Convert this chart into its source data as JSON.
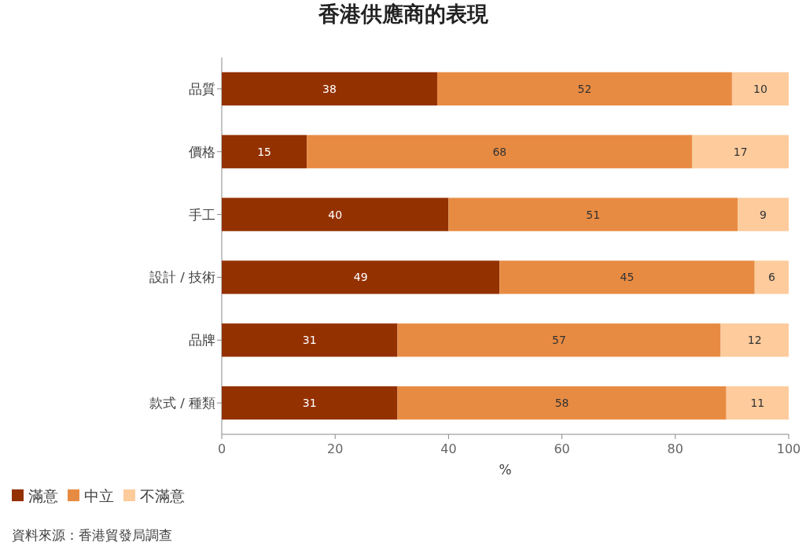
{
  "chart_data": {
    "type": "bar",
    "orientation": "horizontal",
    "stacked": true,
    "title": "香港供應商的表現",
    "categories": [
      "品質",
      "價格",
      "手工",
      "設計 / 技術",
      "品牌",
      "款式 / 種類"
    ],
    "series": [
      {
        "name": "滿意",
        "color": "#943100",
        "values": [
          38,
          15,
          40,
          49,
          31,
          31
        ]
      },
      {
        "name": "中立",
        "color": "#e88b42",
        "values": [
          52,
          68,
          51,
          45,
          57,
          58
        ]
      },
      {
        "name": "不滿意",
        "color": "#fdcb9c",
        "values": [
          10,
          17,
          9,
          6,
          12,
          11
        ]
      }
    ],
    "xlim": [
      0,
      100
    ],
    "xticks": [
      0,
      20,
      40,
      60,
      80,
      100
    ],
    "xlabel": "%",
    "data_labels": true,
    "legend": "bottom left",
    "annotations": [
      "資料來源：香港貿發局調查"
    ]
  }
}
